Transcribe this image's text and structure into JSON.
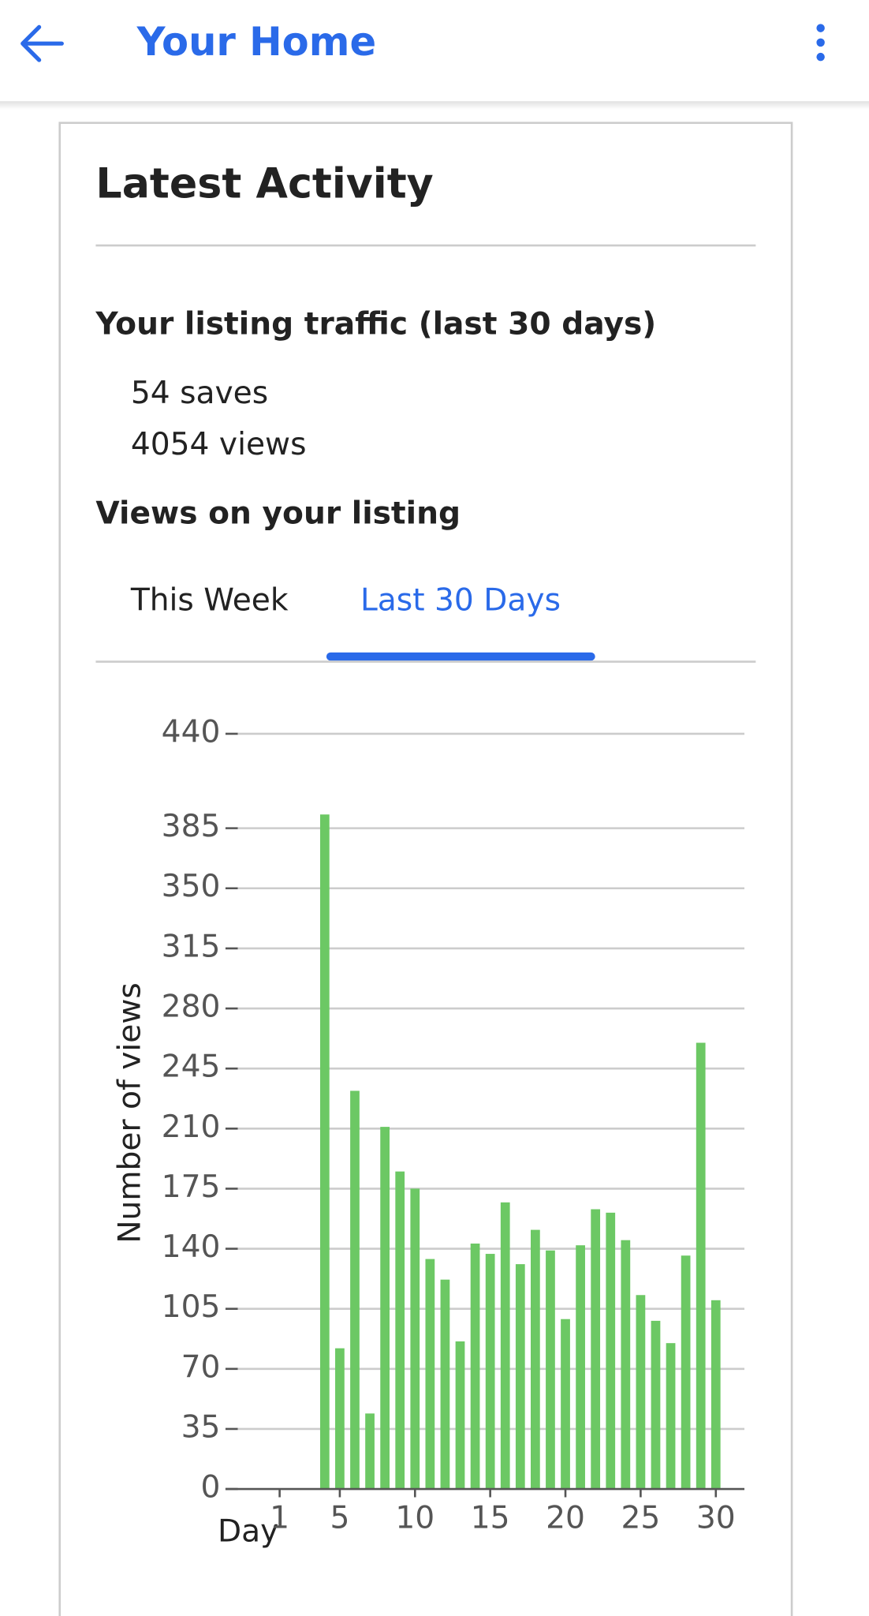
{
  "header": {
    "title": "Your Home"
  },
  "card": {
    "title": "Latest Activity"
  },
  "traffic": {
    "heading": "Your listing traffic (last 30 days)",
    "saves": "54 saves",
    "views": "4054 views"
  },
  "views": {
    "heading": "Views on your listing",
    "tabs": [
      "This Week",
      "Last 30 Days"
    ]
  },
  "chart_data": {
    "type": "bar",
    "x_label": "Day",
    "y_label": "Number of views",
    "color": "#6cc864",
    "x": [
      4,
      5,
      6,
      7,
      8,
      9,
      10,
      11,
      12,
      13,
      14,
      15,
      16,
      17,
      18,
      19,
      20,
      21,
      22,
      23,
      24,
      25,
      26,
      27,
      28,
      29,
      30
    ],
    "values": [
      393,
      82,
      232,
      44,
      211,
      185,
      175,
      134,
      122,
      86,
      143,
      137,
      167,
      131,
      151,
      139,
      99,
      142,
      163,
      161,
      145,
      113,
      98,
      85,
      136,
      260,
      110
    ],
    "xlim": [
      -2.6,
      31.9
    ],
    "xticks": [
      1,
      5,
      10,
      15,
      20,
      25,
      30
    ],
    "ylim": [
      0,
      440
    ],
    "yticks": [
      0,
      35,
      70,
      105,
      140,
      175,
      210,
      245,
      280,
      315,
      350,
      385,
      440
    ],
    "grid": true
  }
}
